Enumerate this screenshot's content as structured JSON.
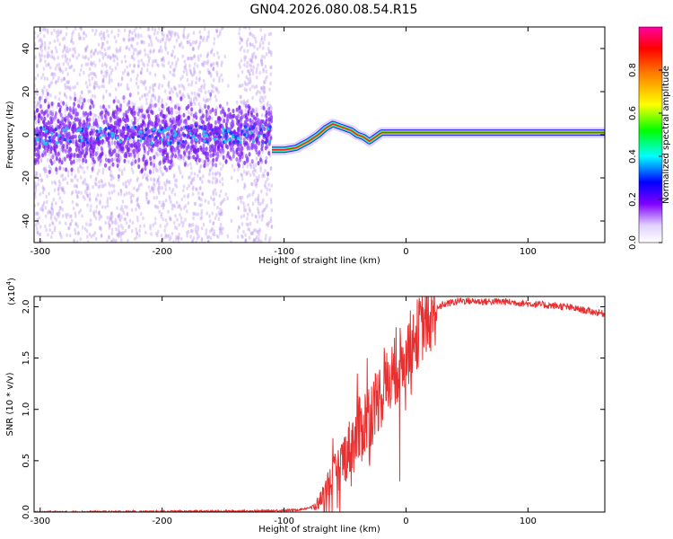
{
  "title": "GN04.2026.080.08.54.R15",
  "chart_data": [
    {
      "type": "heatmap",
      "name": "spectrogram",
      "xlabel": "Height of straight line (km)",
      "ylabel": "Frequency (Hz)",
      "xlim": [
        -305,
        163
      ],
      "ylim": [
        -50,
        50
      ],
      "xticks": [
        -300,
        -200,
        -100,
        0,
        100
      ],
      "yticks": [
        -40,
        -20,
        0,
        20,
        40
      ],
      "xtick_labels": [
        "-300",
        "-200",
        "-100",
        "0",
        "100"
      ],
      "ytick_labels": [
        "-40",
        "-20",
        "0",
        "20",
        "40"
      ],
      "noise_region": [
        -305,
        -110
      ],
      "tone_track": {
        "x": [
          -110,
          -100,
          -90,
          -80,
          -72,
          -66,
          -60,
          -55,
          -50,
          -45,
          -40,
          -35,
          -30,
          -25,
          -20,
          -10,
          0,
          50,
          100,
          163
        ],
        "y": [
          -7,
          -7,
          -6,
          -3,
          0,
          3,
          5,
          4,
          3,
          2,
          0,
          -1,
          -3,
          -1,
          1,
          1,
          1,
          1,
          1,
          1
        ]
      },
      "colorbar": {
        "label": "Normalized spectral amplitude",
        "range": [
          0,
          1
        ],
        "ticks": [
          0.0,
          0.2,
          0.4,
          0.6,
          0.8
        ],
        "tick_labels": [
          "0.0",
          "0.2",
          "0.4",
          "0.6",
          "0.8"
        ]
      }
    },
    {
      "type": "line",
      "name": "snr",
      "xlabel": "Height of straight line (km)",
      "ylabel": "SNR (10 * v/v)",
      "y_multiplier": "(x10",
      "y_multiplier_exp": "4",
      "y_multiplier_close": ")",
      "xlim": [
        -305,
        163
      ],
      "ylim": [
        0,
        2.1
      ],
      "xticks": [
        -300,
        -200,
        -100,
        0,
        100
      ],
      "yticks": [
        0.0,
        0.5,
        1.0,
        1.5,
        2.0
      ],
      "xtick_labels": [
        "-300",
        "-200",
        "-100",
        "0",
        "100"
      ],
      "ytick_labels": [
        "0.0",
        "0.5",
        "1.0",
        "1.5",
        "2.0"
      ],
      "color": "#e83030",
      "envelope": {
        "x": [
          -305,
          -200,
          -120,
          -90,
          -75,
          -70,
          -65,
          -60,
          -55,
          -50,
          -45,
          -40,
          -35,
          -30,
          -25,
          -20,
          -15,
          -10,
          -5,
          0,
          10,
          20,
          30,
          45,
          60,
          80,
          100,
          130,
          163
        ],
        "y": [
          0.0,
          0.005,
          0.01,
          0.02,
          0.05,
          0.12,
          0.25,
          0.35,
          0.45,
          0.55,
          0.65,
          0.75,
          0.85,
          0.95,
          1.05,
          1.15,
          1.25,
          1.35,
          1.45,
          1.55,
          1.75,
          1.92,
          2.02,
          2.06,
          2.05,
          2.05,
          2.03,
          2.0,
          1.93
        ]
      },
      "spikes": [
        {
          "x": -60,
          "y": 0.72
        },
        {
          "x": -45,
          "y": 0.25
        },
        {
          "x": -40,
          "y": 1.35
        },
        {
          "x": -32,
          "y": 1.5
        },
        {
          "x": -30,
          "y": 0.45
        },
        {
          "x": -22,
          "y": 1.35
        },
        {
          "x": -18,
          "y": 1.6
        },
        {
          "x": -8,
          "y": 1.8
        },
        {
          "x": -5,
          "y": 0.3
        },
        {
          "x": 20,
          "y": 1.95
        }
      ]
    }
  ]
}
